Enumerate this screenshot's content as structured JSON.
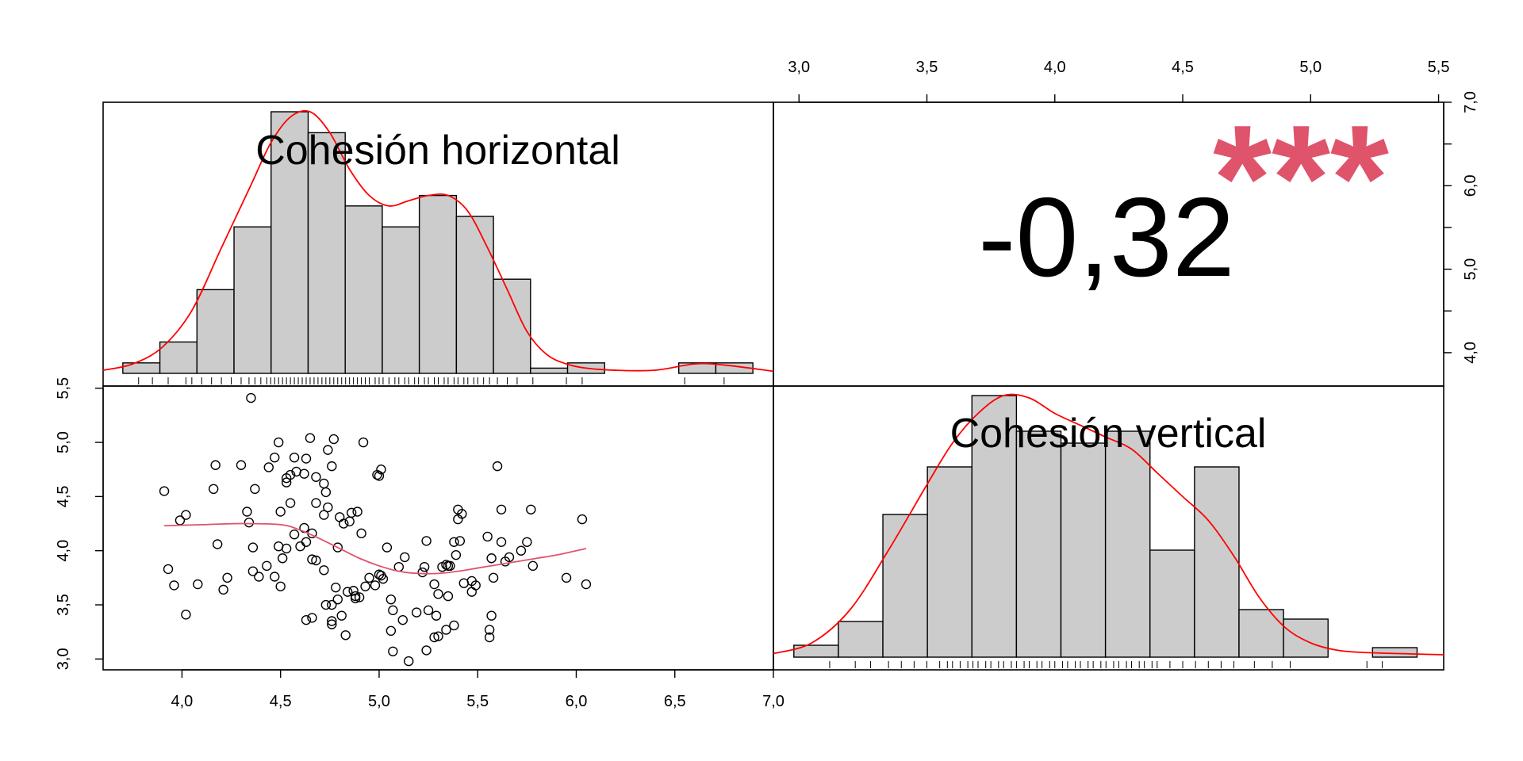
{
  "chart_data": [
    {
      "type": "histogram",
      "title": "Cohesión horizontal",
      "xlim": [
        3.6,
        7.0
      ],
      "bin_edges": [
        3.7,
        3.888,
        4.076,
        4.264,
        4.452,
        4.64,
        4.828,
        5.016,
        5.204,
        5.392,
        5.58,
        5.768,
        5.956,
        6.144,
        6.332,
        6.52,
        6.708,
        6.896
      ],
      "counts": [
        1,
        3,
        8,
        14,
        25,
        23,
        16,
        14,
        17,
        15,
        9,
        0.5,
        1,
        0,
        0,
        1,
        1
      ],
      "density_x": [
        3.6,
        3.75,
        3.9,
        4.05,
        4.2,
        4.35,
        4.45,
        4.55,
        4.65,
        4.75,
        4.85,
        4.95,
        5.05,
        5.15,
        5.25,
        5.35,
        5.45,
        5.55,
        5.65,
        5.75,
        5.85,
        5.95,
        6.05,
        6.2,
        6.4,
        6.6,
        6.75,
        7.0
      ],
      "density_y": [
        0.3,
        0.9,
        2.5,
        6,
        12,
        18,
        22,
        24.5,
        25,
        23,
        19.5,
        17,
        16,
        16.5,
        17,
        17,
        15.5,
        12,
        8,
        4,
        1.8,
        0.9,
        0.5,
        0.3,
        0.3,
        0.9,
        0.8,
        0.2
      ],
      "rug": [
        3.78,
        3.85,
        3.93,
        4.02,
        4.05,
        4.1,
        4.15,
        4.2,
        4.25,
        4.3,
        4.34,
        4.37,
        4.4,
        4.43,
        4.45,
        4.47,
        4.49,
        4.51,
        4.53,
        4.55,
        4.57,
        4.59,
        4.61,
        4.63,
        4.65,
        4.67,
        4.69,
        4.71,
        4.73,
        4.75,
        4.77,
        4.79,
        4.81,
        4.83,
        4.85,
        4.87,
        4.89,
        4.91,
        4.93,
        4.95,
        4.98,
        5.0,
        5.02,
        5.05,
        5.08,
        5.1,
        5.13,
        5.15,
        5.18,
        5.2,
        5.23,
        5.25,
        5.28,
        5.3,
        5.33,
        5.35,
        5.38,
        5.4,
        5.43,
        5.45,
        5.48,
        5.5,
        5.53,
        5.56,
        5.6,
        5.65,
        5.7,
        5.78,
        5.95,
        6.03,
        6.55,
        6.75
      ]
    },
    {
      "type": "histogram",
      "title": "Cohesión vertical",
      "xlim": [
        2.9,
        5.52
      ],
      "bin_edges": [
        2.98,
        3.154,
        3.328,
        3.502,
        3.676,
        3.85,
        4.024,
        4.198,
        4.372,
        4.546,
        4.72,
        4.894,
        5.068,
        5.242,
        5.416
      ],
      "counts": [
        1,
        3,
        12,
        16,
        22,
        19,
        18,
        19,
        9,
        16,
        4,
        3.2,
        0,
        0.8
      ],
      "density_x": [
        2.9,
        3.05,
        3.2,
        3.35,
        3.5,
        3.6,
        3.7,
        3.8,
        3.9,
        4.0,
        4.1,
        4.2,
        4.3,
        4.4,
        4.5,
        4.6,
        4.7,
        4.8,
        4.9,
        5.0,
        5.1,
        5.2,
        5.35,
        5.52
      ],
      "density_y": [
        0.3,
        1.2,
        4,
        9,
        14.5,
        18,
        20.5,
        22,
        21.8,
        20.5,
        19.5,
        18.5,
        17.5,
        15.5,
        13.5,
        11.5,
        8.5,
        5,
        2.5,
        1.2,
        0.6,
        0.4,
        0.3,
        0.2
      ],
      "rug": [
        3.12,
        3.22,
        3.28,
        3.35,
        3.4,
        3.45,
        3.5,
        3.55,
        3.58,
        3.6,
        3.63,
        3.66,
        3.68,
        3.7,
        3.73,
        3.75,
        3.78,
        3.8,
        3.83,
        3.85,
        3.88,
        3.9,
        3.93,
        3.95,
        3.98,
        4.0,
        4.03,
        4.05,
        4.08,
        4.1,
        4.13,
        4.15,
        4.18,
        4.2,
        4.23,
        4.25,
        4.28,
        4.3,
        4.33,
        4.35,
        4.38,
        4.4,
        4.45,
        4.5,
        4.55,
        4.6,
        4.65,
        4.7,
        4.78,
        4.85,
        4.92,
        5.22,
        5.28
      ]
    },
    {
      "type": "scatter",
      "xlabel": "Cohesión horizontal",
      "ylabel": "Cohesión vertical",
      "xlim": [
        3.6,
        7.0
      ],
      "ylim": [
        2.9,
        5.52
      ],
      "points": [
        [
          4.35,
          5.41
        ],
        [
          4.49,
          5.0
        ],
        [
          4.65,
          5.04
        ],
        [
          4.77,
          5.03
        ],
        [
          4.92,
          5.0
        ],
        [
          4.74,
          4.93
        ],
        [
          4.57,
          4.86
        ],
        [
          4.47,
          4.86
        ],
        [
          4.63,
          4.85
        ],
        [
          4.17,
          4.79
        ],
        [
          4.3,
          4.79
        ],
        [
          4.44,
          4.77
        ],
        [
          4.76,
          4.78
        ],
        [
          5.6,
          4.78
        ],
        [
          5.01,
          4.75
        ],
        [
          4.58,
          4.73
        ],
        [
          4.62,
          4.71
        ],
        [
          4.55,
          4.7
        ],
        [
          4.99,
          4.7
        ],
        [
          5.0,
          4.69
        ],
        [
          4.53,
          4.67
        ],
        [
          4.68,
          4.68
        ],
        [
          4.53,
          4.63
        ],
        [
          4.72,
          4.62
        ],
        [
          3.91,
          4.55
        ],
        [
          4.16,
          4.57
        ],
        [
          4.37,
          4.57
        ],
        [
          4.73,
          4.54
        ],
        [
          4.55,
          4.44
        ],
        [
          4.68,
          4.44
        ],
        [
          4.74,
          4.4
        ],
        [
          4.33,
          4.36
        ],
        [
          4.5,
          4.36
        ],
        [
          4.89,
          4.36
        ],
        [
          4.86,
          4.35
        ],
        [
          4.72,
          4.33
        ],
        [
          5.4,
          4.38
        ],
        [
          5.62,
          4.38
        ],
        [
          5.77,
          4.38
        ],
        [
          5.42,
          4.34
        ],
        [
          4.02,
          4.33
        ],
        [
          4.8,
          4.31
        ],
        [
          5.4,
          4.29
        ],
        [
          4.34,
          4.26
        ],
        [
          4.85,
          4.27
        ],
        [
          4.82,
          4.25
        ],
        [
          3.99,
          4.28
        ],
        [
          6.03,
          4.29
        ],
        [
          4.62,
          4.21
        ],
        [
          4.57,
          4.15
        ],
        [
          4.66,
          4.16
        ],
        [
          4.91,
          4.16
        ],
        [
          5.55,
          4.13
        ],
        [
          4.63,
          4.08
        ],
        [
          4.53,
          4.02
        ],
        [
          4.6,
          4.04
        ],
        [
          4.36,
          4.03
        ],
        [
          4.49,
          4.04
        ],
        [
          5.24,
          4.09
        ],
        [
          5.38,
          4.08
        ],
        [
          5.41,
          4.09
        ],
        [
          5.62,
          4.08
        ],
        [
          5.75,
          4.08
        ],
        [
          4.18,
          4.06
        ],
        [
          4.79,
          4.03
        ],
        [
          5.04,
          4.03
        ],
        [
          4.66,
          3.92
        ],
        [
          4.68,
          3.91
        ],
        [
          4.51,
          3.93
        ],
        [
          4.23,
          3.75
        ],
        [
          4.43,
          3.86
        ],
        [
          5.13,
          3.94
        ],
        [
          5.39,
          3.96
        ],
        [
          5.57,
          3.93
        ],
        [
          5.66,
          3.94
        ],
        [
          5.72,
          4.0
        ],
        [
          5.64,
          3.9
        ],
        [
          5.34,
          3.87
        ],
        [
          5.36,
          3.86
        ],
        [
          5.23,
          3.85
        ],
        [
          5.32,
          3.85
        ],
        [
          5.1,
          3.85
        ],
        [
          3.93,
          3.83
        ],
        [
          4.36,
          3.81
        ],
        [
          4.72,
          3.82
        ],
        [
          5.0,
          3.78
        ],
        [
          5.01,
          3.77
        ],
        [
          5.02,
          3.74
        ],
        [
          4.95,
          3.75
        ],
        [
          5.22,
          3.8
        ],
        [
          5.35,
          3.86
        ],
        [
          5.47,
          3.72
        ],
        [
          5.49,
          3.68
        ],
        [
          5.43,
          3.7
        ],
        [
          5.58,
          3.75
        ],
        [
          5.78,
          3.86
        ],
        [
          5.95,
          3.75
        ],
        [
          6.05,
          3.69
        ],
        [
          3.96,
          3.68
        ],
        [
          4.47,
          3.76
        ],
        [
          4.5,
          3.67
        ],
        [
          4.39,
          3.76
        ],
        [
          4.87,
          3.63
        ],
        [
          4.84,
          3.62
        ],
        [
          4.93,
          3.67
        ],
        [
          4.98,
          3.68
        ],
        [
          5.06,
          3.55
        ],
        [
          4.78,
          3.66
        ],
        [
          4.79,
          3.55
        ],
        [
          4.76,
          3.5
        ],
        [
          4.9,
          3.57
        ],
        [
          4.88,
          3.58
        ],
        [
          5.28,
          3.69
        ],
        [
          5.3,
          3.6
        ],
        [
          5.35,
          3.58
        ],
        [
          5.47,
          3.62
        ],
        [
          4.88,
          3.56
        ],
        [
          4.73,
          3.5
        ],
        [
          4.66,
          3.38
        ],
        [
          4.63,
          3.36
        ],
        [
          4.76,
          3.35
        ],
        [
          4.76,
          3.32
        ],
        [
          4.81,
          3.4
        ],
        [
          5.07,
          3.45
        ],
        [
          5.12,
          3.36
        ],
        [
          5.19,
          3.43
        ],
        [
          5.25,
          3.45
        ],
        [
          5.29,
          3.4
        ],
        [
          5.34,
          3.27
        ],
        [
          5.38,
          3.31
        ],
        [
          5.57,
          3.4
        ],
        [
          5.56,
          3.27
        ],
        [
          5.56,
          3.2
        ],
        [
          5.28,
          3.2
        ],
        [
          5.3,
          3.21
        ],
        [
          4.83,
          3.22
        ],
        [
          5.06,
          3.26
        ],
        [
          5.24,
          3.08
        ],
        [
          5.07,
          3.07
        ],
        [
          5.15,
          2.98
        ],
        [
          4.02,
          3.41
        ],
        [
          4.21,
          3.64
        ],
        [
          4.08,
          3.69
        ]
      ],
      "smooth_x": [
        3.91,
        4.1,
        4.3,
        4.5,
        4.6,
        4.7,
        4.8,
        4.9,
        5.0,
        5.1,
        5.2,
        5.3,
        5.4,
        5.5,
        5.6,
        5.7,
        5.8,
        5.9,
        6.0,
        6.05
      ],
      "smooth_y": [
        4.23,
        4.24,
        4.25,
        4.24,
        4.19,
        4.11,
        4.02,
        3.93,
        3.86,
        3.81,
        3.79,
        3.79,
        3.81,
        3.84,
        3.87,
        3.9,
        3.93,
        3.96,
        4.0,
        4.02
      ]
    }
  ],
  "correlation": {
    "value": "-0,32",
    "stars": "***"
  },
  "axes": {
    "top_ticks": [
      "3,0",
      "3,5",
      "4,0",
      "4,5",
      "5,0",
      "5,5"
    ],
    "bottom_ticks": [
      "4,0",
      "4,5",
      "5,0",
      "5,5",
      "6,0",
      "6,5",
      "7,0"
    ],
    "left_ticks": [
      "3,0",
      "3,5",
      "4,0",
      "4,5",
      "5,0",
      "5,5"
    ],
    "right_ticks": [
      "4,0",
      "5,0",
      "6,0",
      "7,0"
    ]
  },
  "colors": {
    "bar_fill": "#cccccc",
    "density_line": "#ff0000",
    "smooth_line": "#df536b",
    "stars": "#df536b",
    "frame": "#000000"
  }
}
